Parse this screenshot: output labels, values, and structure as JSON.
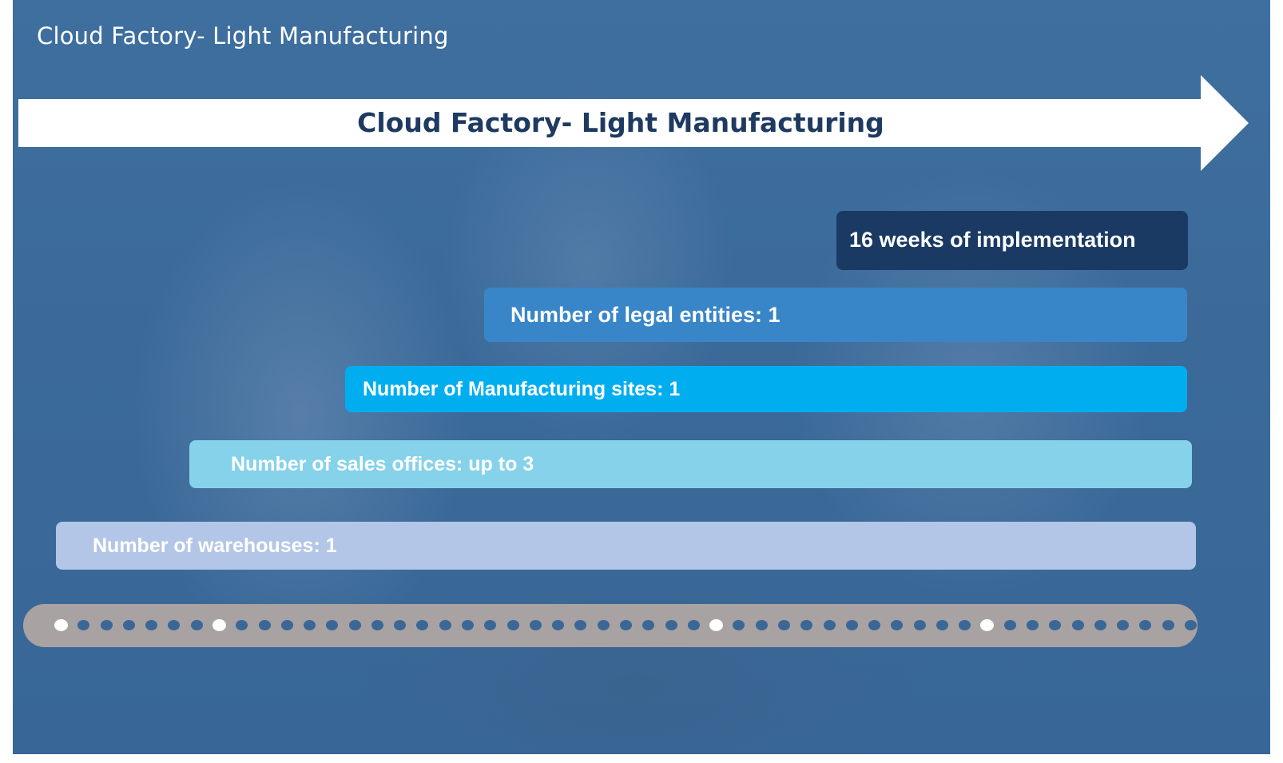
{
  "header": {
    "title": "Cloud Factory- Light Manufacturing"
  },
  "arrow": {
    "label": "Cloud Factory- Light Manufacturing",
    "fill_color": "#ffffff",
    "text_color": "#1e3a60"
  },
  "bars": [
    {
      "label": "16 weeks of implementation",
      "color": "#1a3a63"
    },
    {
      "label": "Number of legal entities: 1",
      "color": "#3886c8"
    },
    {
      "label": "Number of Manufacturing sites: 1",
      "color": "#00aef0"
    },
    {
      "label": "Number of sales offices: up to 3",
      "color": "#85d2ea"
    },
    {
      "label": "Number of warehouses: 1",
      "color": "#b4c6e7"
    }
  ],
  "timeline": {
    "track_color": "#a8a2a2",
    "dot_color": "#3b6796",
    "milestone_color": "#ffffff",
    "dot_count": 51,
    "milestone_indices": [
      0,
      7,
      29,
      41
    ]
  },
  "colors": {
    "background": "#3b6a99"
  }
}
